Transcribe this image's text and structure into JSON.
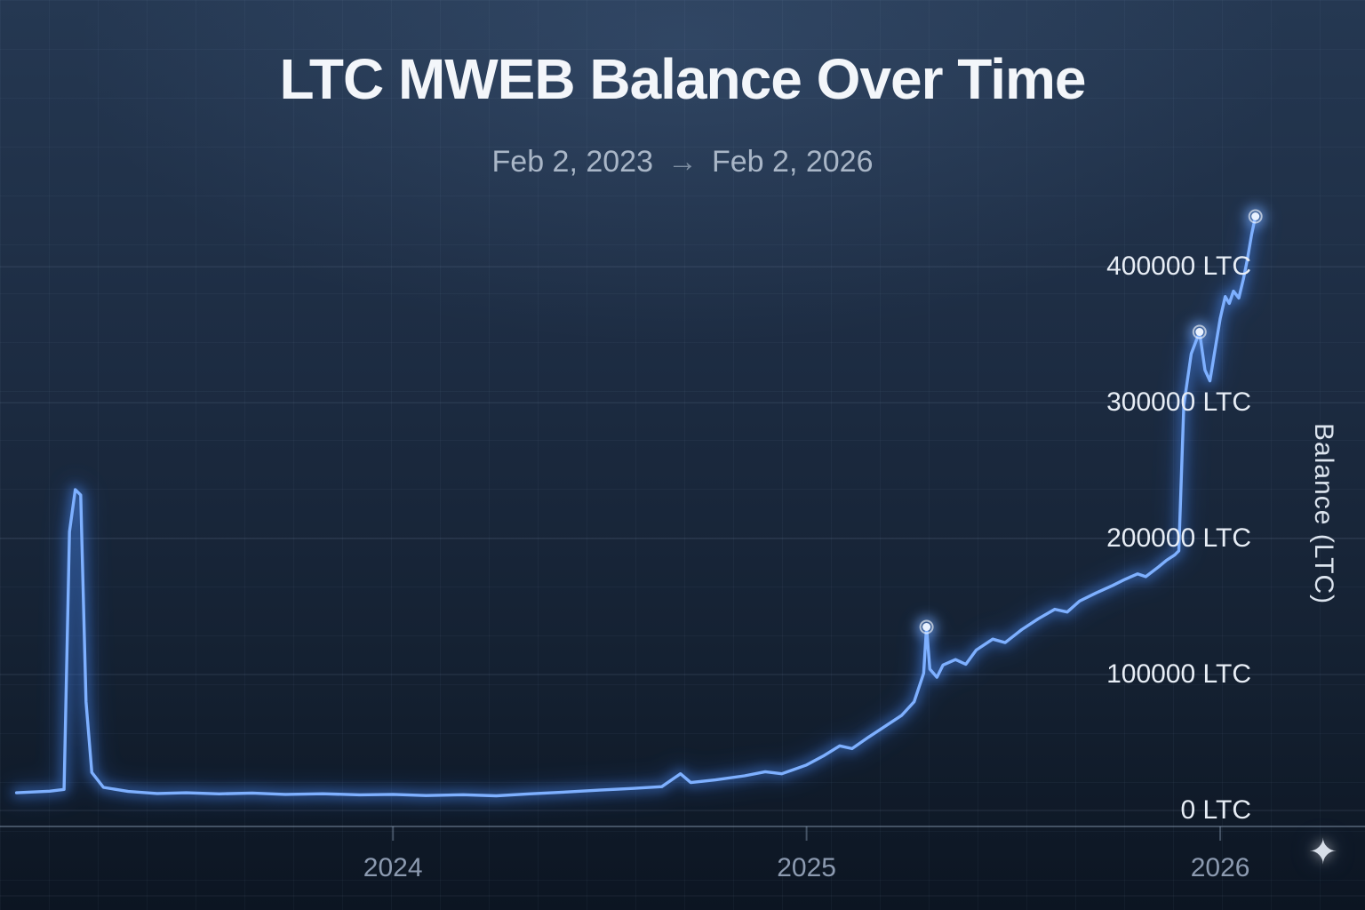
{
  "page": {
    "title": "LTC MWEB Balance Over Time",
    "subtitle": {
      "start": "Feb 2, 2023",
      "arrow": "→",
      "end": "Feb 2, 2026"
    }
  },
  "icons": {
    "sparkle": "✦"
  },
  "colors": {
    "accent": "#4f8ef7",
    "accent_bright": "#7eb0ff",
    "accent_glow": "#2f6fe0",
    "marker_fill": "#eaf2ff",
    "gridline": "rgba(160,182,210,0.16)",
    "axis": "rgba(155,175,200,0.38)"
  },
  "chart_data": {
    "type": "line",
    "title": "LTC MWEB Balance Over Time",
    "date_range": {
      "start": "Feb 2, 2023",
      "end": "Feb 2, 2026"
    },
    "xlabel": "",
    "ylabel": "Balance (LTC)",
    "legend": "none",
    "grid": true,
    "xlim": [
      2023.05,
      2026.35
    ],
    "ylim": [
      0,
      470000
    ],
    "x_ticks": [
      {
        "t": 2024,
        "label": "2024"
      },
      {
        "t": 2025,
        "label": "2025"
      },
      {
        "t": 2026,
        "label": "2026"
      }
    ],
    "y_ticks": [
      {
        "v": 0,
        "label": "0 LTC"
      },
      {
        "v": 100000,
        "label": "100000 LTC"
      },
      {
        "v": 200000,
        "label": "200000 LTC"
      },
      {
        "v": 300000,
        "label": "300000 LTC"
      },
      {
        "v": 400000,
        "label": "400000 LTC"
      }
    ],
    "series": [
      {
        "name": "MWEB Balance",
        "color": "#4f8ef7",
        "points": [
          [
            2023.09,
            13000
          ],
          [
            2023.13,
            13600
          ],
          [
            2023.17,
            14200
          ],
          [
            2023.205,
            15500
          ],
          [
            2023.218,
            205000
          ],
          [
            2023.232,
            236000
          ],
          [
            2023.245,
            232000
          ],
          [
            2023.258,
            80000
          ],
          [
            2023.272,
            28000
          ],
          [
            2023.3,
            17000
          ],
          [
            2023.36,
            14000
          ],
          [
            2023.43,
            12500
          ],
          [
            2023.5,
            13000
          ],
          [
            2023.58,
            12200
          ],
          [
            2023.66,
            12800
          ],
          [
            2023.74,
            11800
          ],
          [
            2023.83,
            12300
          ],
          [
            2023.92,
            11500
          ],
          [
            2024.0,
            11800
          ],
          [
            2024.08,
            11000
          ],
          [
            2024.17,
            11600
          ],
          [
            2024.25,
            10800
          ],
          [
            2024.33,
            12200
          ],
          [
            2024.42,
            13600
          ],
          [
            2024.5,
            15000
          ],
          [
            2024.58,
            16200
          ],
          [
            2024.65,
            17500
          ],
          [
            2024.695,
            27000
          ],
          [
            2024.72,
            20500
          ],
          [
            2024.78,
            22500
          ],
          [
            2024.85,
            25500
          ],
          [
            2024.9,
            28500
          ],
          [
            2024.94,
            27000
          ],
          [
            2025.0,
            33500
          ],
          [
            2025.04,
            40000
          ],
          [
            2025.08,
            47500
          ],
          [
            2025.11,
            45500
          ],
          [
            2025.15,
            54000
          ],
          [
            2025.19,
            62000
          ],
          [
            2025.23,
            70000
          ],
          [
            2025.26,
            80000
          ],
          [
            2025.283,
            101000
          ],
          [
            2025.29,
            135000
          ],
          [
            2025.298,
            104000
          ],
          [
            2025.315,
            98000
          ],
          [
            2025.33,
            107000
          ],
          [
            2025.36,
            111000
          ],
          [
            2025.385,
            107500
          ],
          [
            2025.41,
            118000
          ],
          [
            2025.45,
            126000
          ],
          [
            2025.48,
            123500
          ],
          [
            2025.52,
            133000
          ],
          [
            2025.56,
            141000
          ],
          [
            2025.6,
            148000
          ],
          [
            2025.63,
            146000
          ],
          [
            2025.66,
            154000
          ],
          [
            2025.7,
            160000
          ],
          [
            2025.74,
            165500
          ],
          [
            2025.77,
            170000
          ],
          [
            2025.8,
            174000
          ],
          [
            2025.82,
            172000
          ],
          [
            2025.85,
            179000
          ],
          [
            2025.87,
            184000
          ],
          [
            2025.89,
            188000
          ],
          [
            2025.9,
            191000
          ],
          [
            2025.912,
            298000
          ],
          [
            2025.93,
            336000
          ],
          [
            2025.95,
            352000
          ],
          [
            2025.963,
            324000
          ],
          [
            2025.975,
            316000
          ],
          [
            2025.988,
            340000
          ],
          [
            2026.0,
            362000
          ],
          [
            2026.012,
            378000
          ],
          [
            2026.022,
            373000
          ],
          [
            2026.032,
            382000
          ],
          [
            2026.045,
            377000
          ],
          [
            2026.056,
            391000
          ],
          [
            2026.066,
            406000
          ],
          [
            2026.076,
            424000
          ],
          [
            2026.085,
            437000
          ]
        ]
      }
    ],
    "markers": [
      [
        2025.29,
        135000
      ],
      [
        2025.95,
        352000
      ],
      [
        2026.085,
        437000
      ]
    ]
  }
}
